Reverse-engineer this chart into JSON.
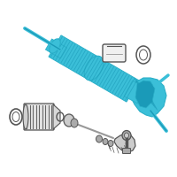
{
  "bg_color": "#ffffff",
  "cyan": "#3bbfd8",
  "cyan_dark": "#1a9ab8",
  "cyan_edge": "#2aafc8",
  "gray": "#999999",
  "dark": "#555555",
  "light_gray": "#cccccc",
  "mid_gray": "#aaaaaa",
  "figsize": [
    2.0,
    2.0
  ],
  "dpi": 100
}
